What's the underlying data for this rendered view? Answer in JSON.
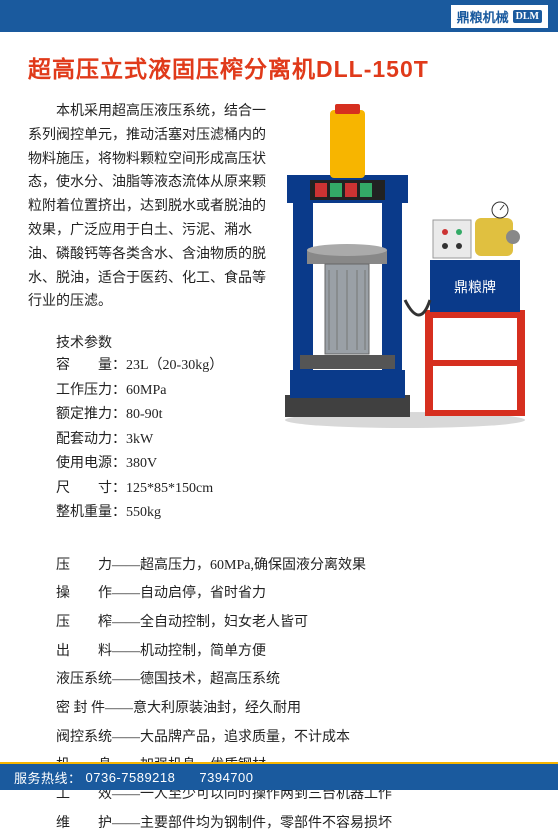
{
  "header": {
    "brand": "鼎粮机械",
    "brand_sub": "DLM"
  },
  "title": "超高压立式液固压榨分离机DLL-150T",
  "description": "本机采用超高压液压系统，结合一系列阀控单元，推动活塞对压滤桶内的物料施压，将物料颗粒空间形成高压状态，使水分、油脂等液态流体从原来颗粒附着位置挤出，达到脱水或者脱油的效果，广泛应用于白土、污泥、潲水油、磷酸钙等各类含水、含油物质的脱水、脱油，适合于医药、化工、食品等行业的压滤。",
  "spec_title": "技术参数",
  "specs": [
    {
      "label": "容　　量：",
      "value": "23L（20-30kg）"
    },
    {
      "label": "工作压力：",
      "value": "60MPa"
    },
    {
      "label": "额定推力：",
      "value": "80-90t"
    },
    {
      "label": "配套动力：",
      "value": "3kW"
    },
    {
      "label": "使用电源：",
      "value": "380V"
    },
    {
      "label": "尺　　寸：",
      "value": "125*85*150cm"
    },
    {
      "label": "整机重量：",
      "value": "550kg"
    }
  ],
  "features": [
    {
      "label": "压　　力——",
      "value": "超高压力，60MPa,确保固液分离效果"
    },
    {
      "label": "操　　作——",
      "value": "自动启停，省时省力"
    },
    {
      "label": "压　　榨——",
      "value": "全自动控制，妇女老人皆可"
    },
    {
      "label": "出　　料——",
      "value": "机动控制，简单方便"
    },
    {
      "label": "液压系统——",
      "value": "德国技术，超高压系统"
    },
    {
      "label": "密 封 件——",
      "value": "意大利原装油封，经久耐用"
    },
    {
      "label": "阀控系统——",
      "value": "大品牌产品，追求质量，不计成本"
    },
    {
      "label": "机　　身——",
      "value": "加强机身、优质钢材"
    },
    {
      "label": "工　　效——",
      "value": "一人至少可以同时操作两到三台机器工作"
    },
    {
      "label": "维　　护——",
      "value": "主要部件均为钢制件，零部件不容易损坏"
    }
  ],
  "footer": {
    "hotline_label": "服务热线：",
    "phone1": "0736-7589218",
    "phone2": "7394700"
  },
  "machine": {
    "press_body_color": "#0a3a8a",
    "cylinder_color": "#f7b500",
    "pump_table_color": "#d62f1f",
    "pump_box_color": "#0a3a8a",
    "panel_color": "#eaeaea",
    "motor_color": "#e0c040",
    "base_color": "#404040",
    "brand_plate": "鼎粮牌"
  },
  "colors": {
    "title": "#e03a1a",
    "header_bg": "#1a5a9e",
    "footer_bg": "#1a5a9e",
    "footer_sep": "#f7b500",
    "text": "#222222",
    "bg": "#ffffff"
  }
}
